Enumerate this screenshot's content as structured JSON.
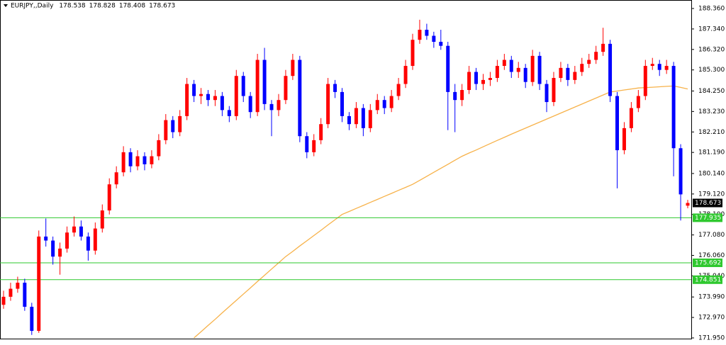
{
  "chart_data": {
    "type": "candlestick",
    "title": "EURJPY,,Daily",
    "up_color": "#ff0000",
    "down_color": "#0000ff",
    "ma_color": "#f7b24a",
    "level_color": "#2ec82e",
    "price_color": "#000000",
    "ylim": [
      171.915,
      188.783
    ],
    "yticks": [
      {
        "value": 188.36,
        "label": "188.360"
      },
      {
        "value": 187.34,
        "label": "187.340"
      },
      {
        "value": 186.32,
        "label": "186.320"
      },
      {
        "value": 185.3,
        "label": "185.300"
      },
      {
        "value": 184.25,
        "label": "184.250"
      },
      {
        "value": 183.23,
        "label": "183.230"
      },
      {
        "value": 182.21,
        "label": "182.210"
      },
      {
        "value": 181.19,
        "label": "181.190"
      },
      {
        "value": 180.14,
        "label": "180.140"
      },
      {
        "value": 179.12,
        "label": "179.120"
      },
      {
        "value": 178.1,
        "label": "178.100"
      },
      {
        "value": 177.08,
        "label": "177.080"
      },
      {
        "value": 176.06,
        "label": "176.060"
      },
      {
        "value": 175.04,
        "label": "175.040"
      },
      {
        "value": 173.99,
        "label": "173.990"
      },
      {
        "value": 172.97,
        "label": "172.970"
      },
      {
        "value": 171.95,
        "label": "171.950"
      }
    ],
    "levels": [
      177.935,
      175.692,
      174.851
    ],
    "ohlc": [
      [
        173.6,
        174.3,
        173.4,
        174.0
      ],
      [
        174.0,
        174.7,
        173.8,
        174.4
      ],
      [
        174.4,
        175.0,
        174.2,
        174.7
      ],
      [
        174.7,
        174.9,
        173.3,
        173.5
      ],
      [
        173.5,
        173.7,
        172.1,
        172.3
      ],
      [
        172.3,
        177.3,
        172.2,
        177.0
      ],
      [
        177.0,
        177.9,
        176.5,
        176.8
      ],
      [
        176.8,
        177.0,
        175.6,
        176.0
      ],
      [
        176.0,
        176.7,
        175.1,
        176.4
      ],
      [
        176.4,
        177.5,
        176.2,
        177.2
      ],
      [
        177.2,
        178.0,
        177.0,
        177.5
      ],
      [
        177.5,
        177.8,
        176.8,
        177.0
      ],
      [
        177.0,
        177.2,
        175.8,
        176.3
      ],
      [
        176.3,
        177.7,
        176.1,
        177.4
      ],
      [
        177.4,
        178.6,
        177.2,
        178.3
      ],
      [
        178.3,
        179.9,
        178.1,
        179.6
      ],
      [
        179.6,
        180.5,
        179.4,
        180.2
      ],
      [
        180.2,
        181.5,
        180.0,
        181.2
      ],
      [
        181.2,
        181.4,
        180.2,
        180.5
      ],
      [
        180.5,
        181.3,
        180.3,
        181.0
      ],
      [
        181.0,
        181.2,
        180.3,
        180.6
      ],
      [
        180.6,
        181.3,
        180.4,
        181.0
      ],
      [
        181.0,
        182.1,
        180.8,
        181.8
      ],
      [
        181.8,
        183.1,
        181.6,
        182.8
      ],
      [
        182.8,
        183.0,
        181.9,
        182.2
      ],
      [
        182.2,
        183.3,
        182.0,
        183.0
      ],
      [
        183.0,
        184.9,
        182.8,
        184.6
      ],
      [
        184.6,
        184.8,
        183.7,
        184.0
      ],
      [
        184.0,
        184.4,
        183.6,
        184.1
      ],
      [
        184.1,
        184.3,
        183.5,
        183.8
      ],
      [
        183.8,
        184.3,
        183.5,
        184.0
      ],
      [
        184.0,
        184.2,
        183.0,
        183.3
      ],
      [
        183.3,
        183.5,
        182.7,
        183.0
      ],
      [
        183.0,
        185.3,
        182.8,
        185.0
      ],
      [
        185.0,
        185.2,
        183.7,
        184.0
      ],
      [
        184.0,
        184.2,
        182.9,
        183.2
      ],
      [
        183.2,
        186.1,
        183.0,
        185.8
      ],
      [
        185.8,
        186.4,
        183.3,
        183.6
      ],
      [
        183.6,
        183.8,
        182.0,
        183.3
      ],
      [
        183.3,
        184.1,
        183.0,
        183.8
      ],
      [
        183.8,
        185.3,
        183.6,
        185.0
      ],
      [
        185.0,
        186.1,
        184.8,
        185.8
      ],
      [
        185.8,
        186.0,
        181.7,
        182.0
      ],
      [
        182.0,
        182.2,
        180.9,
        181.2
      ],
      [
        181.2,
        182.1,
        181.0,
        181.8
      ],
      [
        181.8,
        182.9,
        181.6,
        182.6
      ],
      [
        182.6,
        184.9,
        182.4,
        184.6
      ],
      [
        184.6,
        184.8,
        183.9,
        184.2
      ],
      [
        184.2,
        184.4,
        182.7,
        183.0
      ],
      [
        183.0,
        183.2,
        182.3,
        182.6
      ],
      [
        182.6,
        183.7,
        182.4,
        183.4
      ],
      [
        183.4,
        183.6,
        182.0,
        182.4
      ],
      [
        182.4,
        183.6,
        182.2,
        183.3
      ],
      [
        183.3,
        184.1,
        183.1,
        183.8
      ],
      [
        183.8,
        184.0,
        183.1,
        183.4
      ],
      [
        183.4,
        184.3,
        183.2,
        184.0
      ],
      [
        184.0,
        184.9,
        183.8,
        184.6
      ],
      [
        184.6,
        185.8,
        184.4,
        185.5
      ],
      [
        185.5,
        187.1,
        185.3,
        186.8
      ],
      [
        186.8,
        187.8,
        186.6,
        187.3
      ],
      [
        187.3,
        187.6,
        186.8,
        187.0
      ],
      [
        187.0,
        187.2,
        186.4,
        186.7
      ],
      [
        186.7,
        187.3,
        186.3,
        186.5
      ],
      [
        186.5,
        186.7,
        182.3,
        184.2
      ],
      [
        184.2,
        184.6,
        182.2,
        183.8
      ],
      [
        183.8,
        184.6,
        183.5,
        184.3
      ],
      [
        184.3,
        185.5,
        184.1,
        185.2
      ],
      [
        185.2,
        185.4,
        184.3,
        184.6
      ],
      [
        184.6,
        185.1,
        184.3,
        184.8
      ],
      [
        184.8,
        185.2,
        184.5,
        184.9
      ],
      [
        184.9,
        185.8,
        184.7,
        185.5
      ],
      [
        185.5,
        186.1,
        185.3,
        185.8
      ],
      [
        185.8,
        186.0,
        184.9,
        185.2
      ],
      [
        185.2,
        185.7,
        184.9,
        185.4
      ],
      [
        185.4,
        185.6,
        184.4,
        184.7
      ],
      [
        184.7,
        186.3,
        184.5,
        186.0
      ],
      [
        186.0,
        186.2,
        184.3,
        184.6
      ],
      [
        184.6,
        184.8,
        183.2,
        183.7
      ],
      [
        183.7,
        185.2,
        183.5,
        184.9
      ],
      [
        184.9,
        185.7,
        184.7,
        185.4
      ],
      [
        185.4,
        185.6,
        184.5,
        184.8
      ],
      [
        184.8,
        185.5,
        184.6,
        185.2
      ],
      [
        185.2,
        185.9,
        185.0,
        185.6
      ],
      [
        185.6,
        186.1,
        185.4,
        185.8
      ],
      [
        185.8,
        186.5,
        185.6,
        186.2
      ],
      [
        186.2,
        187.4,
        186.0,
        186.6
      ],
      [
        186.6,
        186.8,
        183.7,
        184.0
      ],
      [
        184.0,
        184.2,
        179.4,
        181.3
      ],
      [
        181.3,
        182.7,
        181.1,
        182.4
      ],
      [
        182.4,
        183.7,
        182.2,
        183.4
      ],
      [
        183.4,
        184.3,
        183.2,
        184.0
      ],
      [
        184.0,
        185.8,
        183.8,
        185.5
      ],
      [
        185.5,
        185.9,
        185.3,
        185.6
      ],
      [
        185.6,
        185.8,
        185.0,
        185.3
      ],
      [
        185.3,
        185.8,
        185.1,
        185.5
      ],
      [
        185.5,
        185.7,
        180.0,
        181.4
      ],
      [
        181.4,
        181.6,
        177.8,
        179.1
      ],
      [
        178.538,
        178.828,
        178.408,
        178.673
      ]
    ],
    "ma": [
      null,
      null,
      null,
      null,
      null,
      null,
      null,
      null,
      null,
      null,
      null,
      null,
      null,
      null,
      null,
      null,
      null,
      null,
      null,
      null,
      null,
      null,
      null,
      null,
      null,
      null,
      null,
      171.95,
      172.26,
      172.57,
      172.88,
      173.2,
      173.51,
      173.82,
      174.13,
      174.44,
      174.76,
      175.07,
      175.38,
      175.69,
      176.0,
      176.26,
      176.53,
      176.79,
      177.05,
      177.31,
      177.58,
      177.84,
      178.1,
      178.25,
      178.4,
      178.55,
      178.7,
      178.85,
      179.0,
      179.15,
      179.3,
      179.45,
      179.6,
      179.8,
      180.0,
      180.2,
      180.4,
      180.6,
      180.8,
      181.0,
      181.16,
      181.31,
      181.47,
      181.63,
      181.79,
      181.94,
      182.1,
      182.25,
      182.4,
      182.55,
      182.7,
      182.85,
      183.0,
      183.15,
      183.3,
      183.45,
      183.6,
      183.75,
      183.9,
      184.05,
      184.2,
      184.25,
      184.3,
      184.35,
      184.4,
      184.42,
      184.44,
      184.46,
      184.48,
      184.5,
      184.43,
      184.35
    ]
  }
}
